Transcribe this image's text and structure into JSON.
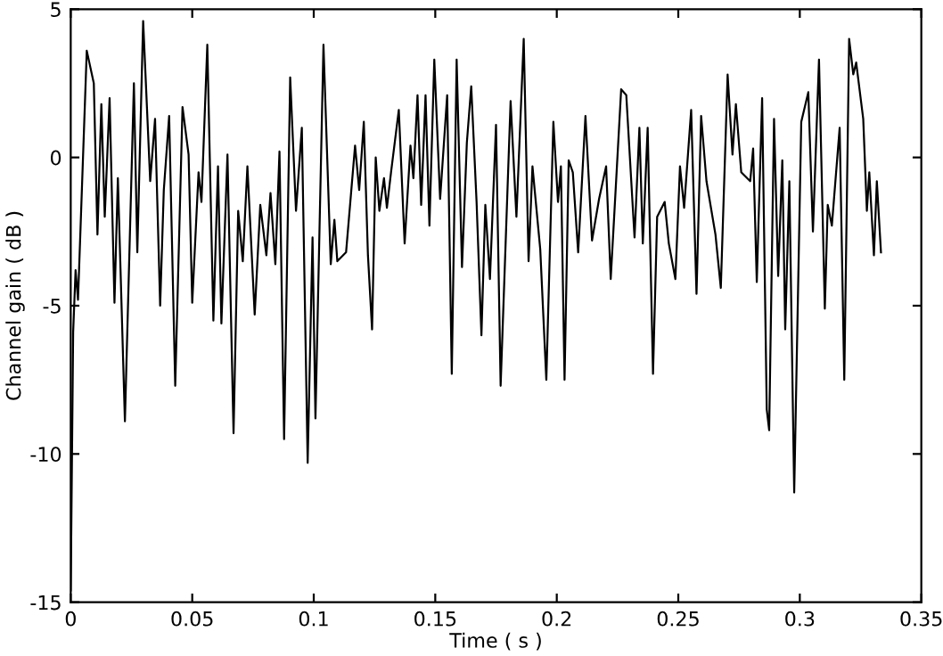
{
  "chart_data": {
    "type": "line",
    "xlabel": "Time ( s )",
    "ylabel": "Channel gain ( dB )",
    "xlim": [
      0,
      0.35
    ],
    "ylim": [
      -15,
      5
    ],
    "xticks": [
      0,
      0.05,
      0.1,
      0.15,
      0.2,
      0.25,
      0.3,
      0.35
    ],
    "yticks": [
      -15,
      -10,
      -5,
      0,
      5
    ],
    "grid": false,
    "line_style": "solid",
    "marker": "none",
    "series": [
      {
        "color": "#000000",
        "x": [
          0,
          0.001,
          0.002,
          0.003,
          0.0066,
          0.0095,
          0.011,
          0.0126,
          0.014,
          0.016,
          0.018,
          0.0194,
          0.0223,
          0.026,
          0.0274,
          0.0298,
          0.0327,
          0.0347,
          0.0368,
          0.0383,
          0.0405,
          0.043,
          0.046,
          0.0485,
          0.05,
          0.0526,
          0.0538,
          0.0562,
          0.0587,
          0.0606,
          0.062,
          0.0645,
          0.067,
          0.0689,
          0.0708,
          0.0727,
          0.0757,
          0.078,
          0.0805,
          0.0822,
          0.0842,
          0.0859,
          0.0878,
          0.0903,
          0.0927,
          0.0951,
          0.0975,
          0.0995,
          0.1007,
          0.104,
          0.107,
          0.1085,
          0.1097,
          0.1133,
          0.117,
          0.1187,
          0.1206,
          0.1223,
          0.124,
          0.1255,
          0.127,
          0.1289,
          0.1301,
          0.1318,
          0.135,
          0.1374,
          0.1398,
          0.141,
          0.1427,
          0.1442,
          0.146,
          0.1476,
          0.1496,
          0.152,
          0.1549,
          0.1568,
          0.1588,
          0.161,
          0.163,
          0.1648,
          0.167,
          0.169,
          0.1706,
          0.1725,
          0.175,
          0.1769,
          0.181,
          0.1834,
          0.1864,
          0.1884,
          0.19,
          0.1932,
          0.1957,
          0.1986,
          0.2005,
          0.2017,
          0.2032,
          0.2049,
          0.2066,
          0.2088,
          0.2118,
          0.2145,
          0.2174,
          0.2203,
          0.2222,
          0.2265,
          0.2286,
          0.232,
          0.234,
          0.2354,
          0.2374,
          0.2396,
          0.2413,
          0.2444,
          0.2461,
          0.2488,
          0.2507,
          0.2524,
          0.2553,
          0.2575,
          0.2594,
          0.2616,
          0.2653,
          0.2675,
          0.2703,
          0.2723,
          0.2737,
          0.2759,
          0.2796,
          0.2808,
          0.2823,
          0.2845,
          0.2864,
          0.2874,
          0.2894,
          0.2911,
          0.2928,
          0.294,
          0.2957,
          0.2977,
          0.3006,
          0.3035,
          0.3054,
          0.3079,
          0.3103,
          0.3115,
          0.3132,
          0.3164,
          0.3183,
          0.3203,
          0.322,
          0.3232,
          0.3261,
          0.3276,
          0.3286,
          0.3305,
          0.3317,
          0.3334
        ],
        "values": [
          -14.6,
          -5.9,
          -3.8,
          -4.8,
          3.6,
          2.5,
          -2.6,
          1.8,
          -2.0,
          2.0,
          -4.9,
          -0.7,
          -8.9,
          2.5,
          -3.2,
          4.6,
          -0.8,
          1.3,
          -5.0,
          -1.1,
          1.4,
          -7.7,
          1.7,
          0.1,
          -4.9,
          -0.5,
          -1.5,
          3.8,
          -5.5,
          -0.3,
          -5.6,
          0.1,
          -9.3,
          -1.8,
          -3.5,
          -0.3,
          -5.3,
          -1.6,
          -3.3,
          -1.2,
          -3.6,
          0.2,
          -9.5,
          2.7,
          -1.8,
          1.0,
          -10.3,
          -2.7,
          -8.8,
          3.8,
          -3.6,
          -2.1,
          -3.5,
          -3.2,
          0.4,
          -1.1,
          1.2,
          -3.3,
          -5.8,
          0.0,
          -1.8,
          -0.7,
          -1.7,
          -0.5,
          1.6,
          -2.9,
          0.4,
          -0.7,
          2.1,
          -1.6,
          2.1,
          -2.3,
          3.3,
          -1.4,
          2.1,
          -7.3,
          3.3,
          -3.7,
          0.5,
          2.4,
          -1.5,
          -6.0,
          -1.6,
          -4.1,
          1.1,
          -7.7,
          1.9,
          -2.0,
          4.0,
          -3.5,
          -0.3,
          -3.1,
          -7.5,
          1.2,
          -1.5,
          -0.3,
          -7.5,
          -0.1,
          -0.5,
          -3.2,
          1.4,
          -2.8,
          -1.4,
          -0.3,
          -4.1,
          2.3,
          2.1,
          -2.7,
          1.0,
          -2.9,
          1.0,
          -7.3,
          -2.0,
          -1.5,
          -2.9,
          -4.1,
          -0.3,
          -1.7,
          1.6,
          -4.6,
          1.4,
          -0.8,
          -2.6,
          -4.4,
          2.8,
          0.1,
          1.8,
          -0.5,
          -0.8,
          0.3,
          -4.2,
          2.0,
          -8.5,
          -9.2,
          1.3,
          -4.0,
          -0.1,
          -5.8,
          -0.8,
          -11.3,
          1.2,
          2.2,
          -2.5,
          3.3,
          -5.1,
          -1.6,
          -2.3,
          1.0,
          -7.5,
          4.0,
          2.8,
          3.2,
          1.3,
          -1.8,
          -0.5,
          -3.3,
          -0.8,
          -3.2
        ]
      }
    ]
  }
}
